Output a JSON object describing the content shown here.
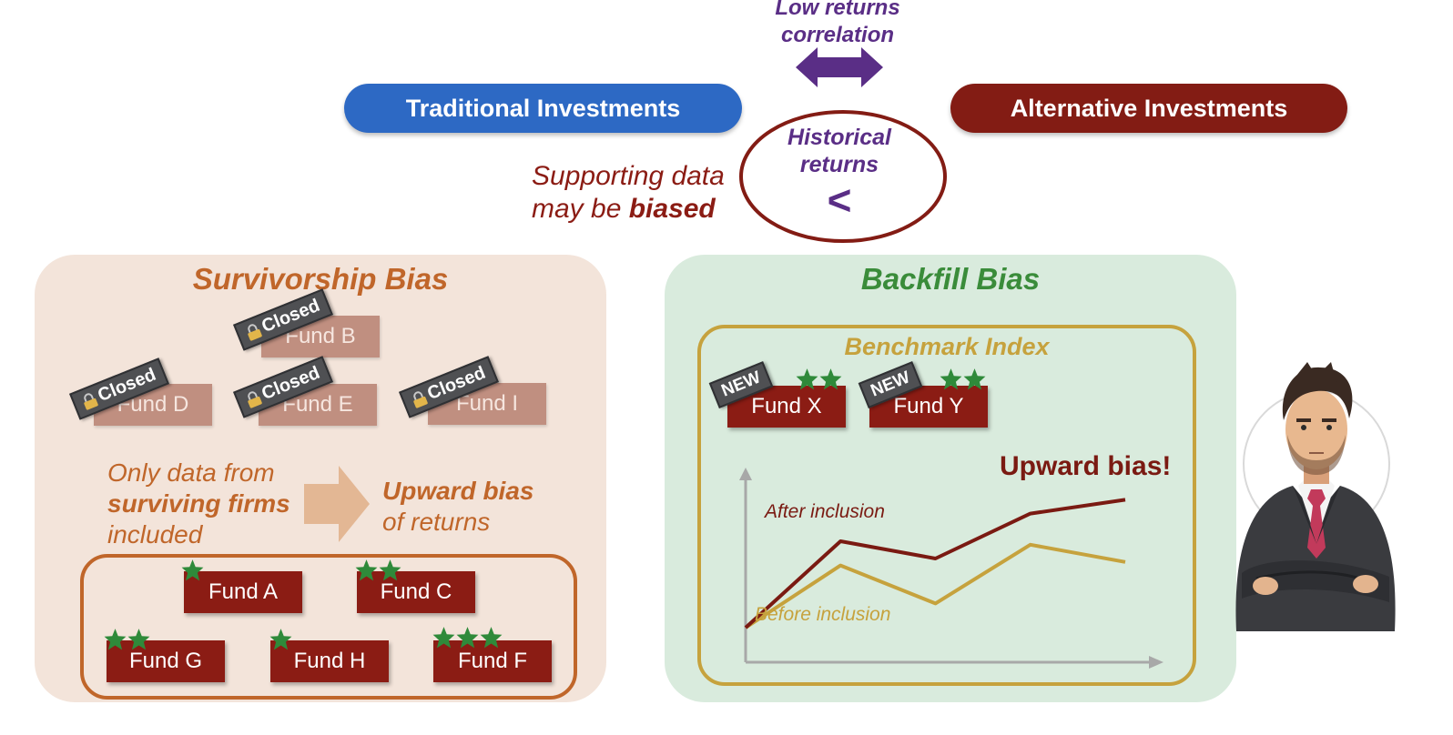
{
  "top": {
    "low_returns": "Low returns",
    "correlation": "correlation",
    "traditional": "Traditional Investments",
    "alternative": "Alternative Investments",
    "historical": "Historical",
    "returns": "returns",
    "less_than": "<",
    "supporting_line1": "Supporting data",
    "supporting_line2_a": "may be ",
    "supporting_line2_b": "biased"
  },
  "survivorship": {
    "title": "Survivorship Bias",
    "closed_label": "Closed",
    "closed_funds": [
      "Fund B",
      "Fund D",
      "Fund E",
      "Fund I"
    ],
    "only_data_from": "Only data from",
    "surviving_firms": "surviving firms",
    "included": "included",
    "upward_bias": "Upward bias",
    "of_returns": "of returns",
    "surviving_funds": [
      {
        "name": "Fund A",
        "stars": 1
      },
      {
        "name": "Fund C",
        "stars": 2
      },
      {
        "name": "Fund G",
        "stars": 2
      },
      {
        "name": "Fund H",
        "stars": 1
      },
      {
        "name": "Fund F",
        "stars": 3
      }
    ]
  },
  "backfill": {
    "title": "Backfill Bias",
    "benchmark": "Benchmark Index",
    "new_label": "NEW",
    "new_funds": [
      {
        "name": "Fund X",
        "stars": 2
      },
      {
        "name": "Fund Y",
        "stars": 2
      }
    ],
    "upward_bias": "Upward bias!",
    "after_label": "After inclusion",
    "before_label": "Before inclusion"
  },
  "chart_data": {
    "type": "line",
    "title": "",
    "xlabel": "",
    "ylabel": "",
    "x": [
      0,
      1,
      2,
      3,
      4
    ],
    "series": [
      {
        "name": "After inclusion",
        "values": [
          1.0,
          3.5,
          3.0,
          4.3,
          4.7
        ]
      },
      {
        "name": "Before inclusion",
        "values": [
          1.0,
          2.8,
          1.7,
          3.4,
          2.9
        ]
      }
    ],
    "ylim": [
      0,
      6
    ],
    "grid": false,
    "colors": {
      "After inclusion": "#7a1a12",
      "Before inclusion": "#c6a23d"
    }
  },
  "colors": {
    "traditional": "#2d69c4",
    "alternative": "#831c14",
    "purple": "#5a2e86",
    "survivorship_panel": "#f3e4da",
    "survivorship_accent": "#c0662a",
    "backfill_panel": "#d9ebdd",
    "backfill_accent": "#3a8c3a",
    "benchmark_gold": "#c6a23d",
    "dark_red": "#8b1c14",
    "star_green": "#2f8a3a"
  },
  "icons": {
    "lock": "lock-icon",
    "star": "star-icon",
    "arrow": "double-arrow-icon",
    "person": "businessman-illustration"
  }
}
